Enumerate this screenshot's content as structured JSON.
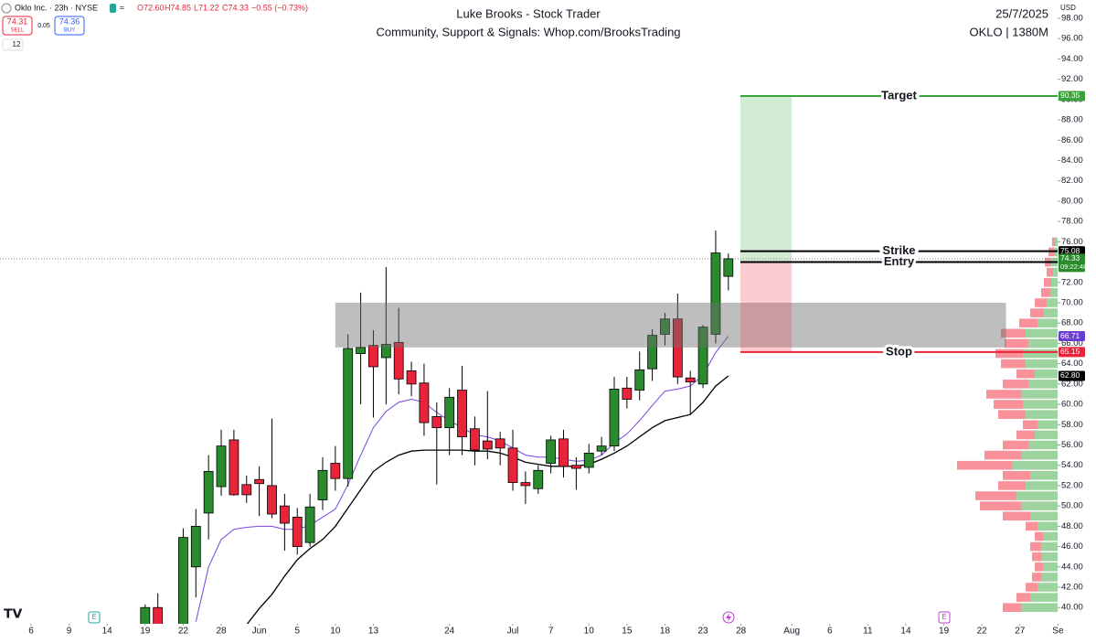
{
  "header": {
    "name": "Oklo Inc. · 23h · NYSE",
    "ohlc": [
      "O72.60",
      "H74.85",
      "L71.22",
      "C74.33",
      "−0.55 (−0.73%)"
    ],
    "sell": {
      "price": 74.31,
      "label": "SELL"
    },
    "spread": 0.05,
    "buy": {
      "price": 74.36,
      "label": "BUY"
    },
    "badge": "12"
  },
  "chart_data": {
    "type": "candlestick",
    "title": "Luke Brooks - Stock Trader",
    "subtitle": "Community, Support & Signals: Whop.com/BrooksTrading",
    "date": "25/7/2025",
    "symbol_info": "OKLO | 1380M",
    "currency": "USD",
    "event_markers": [
      "E",
      "E"
    ],
    "x": [
      9,
      10,
      12,
      13,
      14,
      15,
      16,
      17,
      18,
      19,
      20,
      21,
      22,
      23,
      24,
      25,
      26,
      27,
      28,
      29,
      30,
      31,
      32,
      33,
      34,
      35,
      36,
      37,
      38,
      39,
      40,
      41,
      42,
      43,
      44,
      45,
      46,
      47,
      48,
      49,
      50,
      51,
      52,
      53,
      54,
      55
    ],
    "open": [
      37.5,
      40.0,
      37.5,
      44.0,
      49.3,
      51.9,
      56.5,
      52.1,
      52.6,
      52.0,
      50.0,
      48.9,
      46.4,
      50.6,
      54.2,
      52.7,
      65.0,
      65.8,
      64.6,
      66.1,
      63.3,
      62.1,
      58.8,
      57.7,
      61.4,
      57.6,
      56.4,
      56.6,
      55.7,
      52.3,
      51.7,
      54.2,
      56.6,
      54.0,
      53.8,
      55.4,
      55.9,
      61.6,
      61.4,
      63.5,
      66.9,
      68.4,
      62.6,
      62.0,
      66.9,
      72.6
    ],
    "high": [
      40.3,
      41.4,
      47.8,
      49.7,
      55.0,
      57.5,
      57.5,
      53.0,
      53.9,
      58.6,
      51.2,
      49.8,
      51.2,
      54.8,
      55.9,
      66.9,
      71.0,
      67.3,
      73.5,
      69.5,
      64.2,
      64.0,
      60.2,
      61.6,
      63.8,
      58.8,
      61.3,
      57.3,
      57.5,
      53.4,
      54.0,
      56.9,
      57.5,
      54.8,
      56.1,
      56.8,
      62.7,
      62.7,
      65.2,
      67.4,
      69.0,
      70.9,
      63.3,
      67.8,
      77.1,
      74.85
    ],
    "low": [
      37.0,
      37.0,
      37.0,
      41.0,
      46.7,
      51.0,
      51.0,
      50.3,
      49.0,
      48.8,
      45.6,
      45.2,
      46.0,
      49.6,
      51.5,
      51.9,
      60.0,
      58.7,
      60.0,
      61.0,
      60.8,
      56.9,
      52.1,
      55.0,
      55.0,
      54.0,
      54.6,
      54.0,
      51.5,
      50.2,
      51.2,
      53.2,
      52.8,
      51.6,
      53.2,
      55.0,
      55.4,
      59.6,
      60.4,
      62.3,
      65.8,
      62.0,
      59.0,
      61.6,
      66.0,
      71.22
    ],
    "close": [
      40.0,
      37.5,
      46.9,
      48.0,
      53.4,
      55.9,
      51.1,
      51.1,
      52.2,
      49.2,
      48.3,
      46.0,
      49.9,
      53.5,
      52.7,
      65.5,
      65.6,
      63.7,
      65.9,
      62.5,
      62.0,
      58.2,
      57.7,
      60.7,
      56.8,
      55.5,
      55.6,
      55.7,
      52.3,
      52.0,
      53.5,
      56.5,
      53.9,
      53.7,
      55.2,
      55.9,
      61.5,
      60.5,
      63.4,
      66.8,
      68.4,
      62.7,
      62.2,
      67.6,
      74.9,
      74.33
    ],
    "up_color": "#2b8a2e",
    "down_color": "#e8233a",
    "series": [
      {
        "color": "#7b42e0",
        "values": [
          null,
          null,
          null,
          38.6,
          44.0,
          46.7,
          47.7,
          47.9,
          48.0,
          48.0,
          47.7,
          47.7,
          48.1,
          48.9,
          49.7,
          52.1,
          55.0,
          57.7,
          59.3,
          60.2,
          60.5,
          60.2,
          59.2,
          58.4,
          57.7,
          57.0,
          56.8,
          56.4,
          55.7,
          55.0,
          54.8,
          54.8,
          54.6,
          54.4,
          54.5,
          55.0,
          56.2,
          57.1,
          58.4,
          59.9,
          61.3,
          61.5,
          61.8,
          62.9,
          65.1,
          66.71
        ]
      },
      {
        "color": "#000000",
        "values": [
          null,
          null,
          null,
          null,
          null,
          null,
          null,
          38.3,
          39.9,
          41.3,
          43.1,
          44.7,
          45.8,
          46.7,
          48.0,
          49.8,
          51.6,
          53.4,
          54.3,
          55.0,
          55.4,
          55.5,
          55.5,
          55.5,
          55.5,
          55.4,
          55.4,
          55.2,
          54.8,
          54.3,
          54.1,
          53.9,
          53.9,
          53.9,
          54.1,
          54.6,
          55.2,
          55.9,
          56.8,
          57.7,
          58.4,
          58.7,
          59.0,
          60.2,
          61.8,
          62.8
        ]
      }
    ],
    "zone": {
      "x_start": 24.0,
      "x_end": 76.9,
      "high": 70.0,
      "low": 65.6,
      "color": "rgba(110,110,110,0.45)"
    },
    "position": {
      "x_start": 55.95,
      "x_end": 60.0,
      "profit_color": "rgba(76,175,80,0.25)",
      "loss_color": "rgba(242,54,69,0.25)"
    },
    "levels": [
      {
        "name": "Target",
        "value": 90.35,
        "color": "#3aa23a"
      },
      {
        "name": "Strike",
        "value": 75.08,
        "color": "#000000"
      },
      {
        "name": "Entry",
        "value": 74.01,
        "color": "#000000"
      },
      {
        "name": "Stop",
        "value": 65.15,
        "color": "#e8233a"
      }
    ],
    "current_price": {
      "value": 74.33,
      "countdown": "09:22:48",
      "color": "#2b8a2e"
    },
    "price_tags": [
      {
        "value": 66.71,
        "color": "#6a3fd0"
      },
      {
        "value": 62.8,
        "label": "62.80",
        "color": "#000000"
      }
    ],
    "volume_profile": {
      "prices": [
        40,
        41,
        42,
        43,
        44,
        45,
        46,
        47,
        48,
        49,
        50,
        51,
        52,
        53,
        54,
        55,
        56,
        57,
        58,
        59,
        60,
        61,
        62,
        63,
        64,
        65,
        66,
        67,
        68,
        69,
        70,
        71,
        72,
        73,
        74,
        75,
        76
      ],
      "buy": [
        40,
        30,
        22,
        18,
        16,
        18,
        18,
        16,
        22,
        30,
        40,
        45,
        35,
        30,
        50,
        40,
        32,
        25,
        22,
        35,
        38,
        40,
        32,
        25,
        35,
        38,
        32,
        35,
        22,
        15,
        12,
        8,
        7,
        5,
        7,
        4,
        3
      ],
      "sell": [
        20,
        15,
        13,
        10,
        9,
        10,
        12,
        9,
        13,
        30,
        45,
        45,
        30,
        30,
        60,
        40,
        28,
        20,
        16,
        30,
        32,
        38,
        28,
        20,
        27,
        30,
        26,
        27,
        20,
        15,
        13,
        10,
        8,
        7,
        7,
        6,
        3
      ],
      "buy_color": "rgba(76,175,80,0.55)",
      "sell_color": "rgba(242,54,69,0.55)"
    },
    "xlim": [
      -2.45,
      80.97
    ],
    "xticks": [
      {
        "value": 0,
        "label": "6"
      },
      {
        "value": 3,
        "label": "9"
      },
      {
        "value": 6,
        "label": "14"
      },
      {
        "value": 9,
        "label": "19"
      },
      {
        "value": 12,
        "label": "22"
      },
      {
        "value": 15,
        "label": "28"
      },
      {
        "value": 18,
        "label": "Jun"
      },
      {
        "value": 21,
        "label": "5"
      },
      {
        "value": 24,
        "label": "10"
      },
      {
        "value": 27,
        "label": "13"
      },
      {
        "value": 33,
        "label": "24"
      },
      {
        "value": 38,
        "label": "Jul"
      },
      {
        "value": 41,
        "label": "7"
      },
      {
        "value": 44,
        "label": "10"
      },
      {
        "value": 47,
        "label": "15"
      },
      {
        "value": 50,
        "label": "18"
      },
      {
        "value": 53,
        "label": "23"
      },
      {
        "value": 56,
        "label": "28"
      },
      {
        "value": 60,
        "label": "Aug"
      },
      {
        "value": 63,
        "label": "6"
      },
      {
        "value": 66,
        "label": "11"
      },
      {
        "value": 69,
        "label": "14"
      },
      {
        "value": 72,
        "label": "19"
      },
      {
        "value": 75,
        "label": "22"
      },
      {
        "value": 78,
        "label": "27"
      },
      {
        "value": 81,
        "label": "Se"
      }
    ],
    "ylim": [
      38.4,
      99.8
    ],
    "yticks": [
      {
        "value": 40,
        "label": "40.00"
      },
      {
        "value": 42,
        "label": "42.00"
      },
      {
        "value": 44,
        "label": "44.00"
      },
      {
        "value": 46,
        "label": "46.00"
      },
      {
        "value": 48,
        "label": "48.00"
      },
      {
        "value": 50,
        "label": "50.00"
      },
      {
        "value": 52,
        "label": "52.00"
      },
      {
        "value": 54,
        "label": "54.00"
      },
      {
        "value": 56,
        "label": "56.00"
      },
      {
        "value": 58,
        "label": "58.00"
      },
      {
        "value": 60,
        "label": "60.00"
      },
      {
        "value": 62,
        "label": "62.00"
      },
      {
        "value": 64,
        "label": "64.00"
      },
      {
        "value": 66,
        "label": "66.00"
      },
      {
        "value": 68,
        "label": "68.00"
      },
      {
        "value": 70,
        "label": "70.00"
      },
      {
        "value": 72,
        "label": "72.00"
      },
      {
        "value": 74,
        "label": "74.00"
      },
      {
        "value": 76,
        "label": "76.00"
      },
      {
        "value": 78,
        "label": "78.00"
      },
      {
        "value": 80,
        "label": "80.00"
      },
      {
        "value": 82,
        "label": "82.00"
      },
      {
        "value": 84,
        "label": "84.00"
      },
      {
        "value": 86,
        "label": "86.00"
      },
      {
        "value": 88,
        "label": "88.00"
      },
      {
        "value": 90,
        "label": "90.00"
      },
      {
        "value": 92,
        "label": "92.00"
      },
      {
        "value": 94,
        "label": "94.00"
      },
      {
        "value": 96,
        "label": "96.00"
      },
      {
        "value": 98,
        "label": "98.00"
      }
    ]
  }
}
